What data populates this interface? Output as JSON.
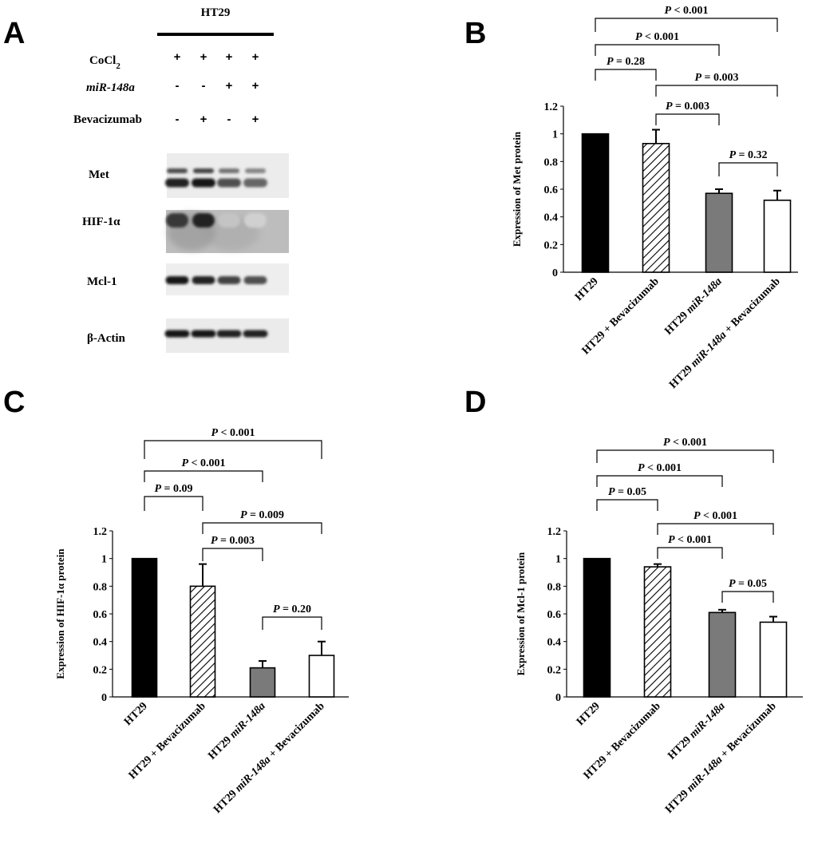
{
  "panels": {
    "a": "A",
    "b": "B",
    "c": "C",
    "d": "D"
  },
  "blot": {
    "cell_line": "HT29",
    "rows": [
      {
        "label": "CoCl",
        "subscript": "2",
        "italic": false,
        "signs": [
          "+",
          "+",
          "+",
          "+"
        ]
      },
      {
        "label": "miR-148a",
        "subscript": "",
        "italic": true,
        "signs": [
          "-",
          "-",
          "+",
          "+"
        ]
      },
      {
        "label": "Bevacizumab",
        "subscript": "",
        "italic": false,
        "signs": [
          "-",
          "+",
          "-",
          "+"
        ]
      }
    ],
    "proteins": [
      {
        "label": "Met",
        "intensity": [
          0.95,
          1.0,
          0.75,
          0.65
        ]
      },
      {
        "label": "HIF-1α",
        "intensity": [
          0.85,
          0.95,
          0.25,
          0.2
        ]
      },
      {
        "label": "Mcl-1",
        "intensity": [
          1.0,
          0.95,
          0.8,
          0.75
        ]
      },
      {
        "label": "β-Actin",
        "intensity": [
          1.0,
          1.0,
          0.95,
          0.95
        ]
      }
    ]
  },
  "chart_data": [
    {
      "panel": "B",
      "type": "bar",
      "categories": [
        [
          {
            "t": "HT29",
            "i": false
          }
        ],
        [
          {
            "t": "HT29 + Bevacizumab",
            "i": false
          }
        ],
        [
          {
            "t": "HT29 ",
            "i": false
          },
          {
            "t": "miR-148a",
            "i": true
          }
        ],
        [
          {
            "t": "HT29 ",
            "i": false
          },
          {
            "t": "miR-148a",
            "i": true
          },
          {
            "t": " + Bevacizumab",
            "i": false
          }
        ]
      ],
      "values": [
        1.0,
        0.93,
        0.57,
        0.52
      ],
      "errors": [
        0,
        0.1,
        0.03,
        0.07
      ],
      "ylabel": "Expression of Met protein",
      "ylim": [
        0,
        1.2
      ],
      "yticks": [
        "0",
        "0.2",
        "0.4",
        "0.6",
        "0.8",
        "1",
        "1.2"
      ],
      "fills": [
        "black",
        "hatch",
        "#7a7a7a",
        "#ffffff"
      ],
      "comparisons": [
        {
          "from": 0,
          "to": 3,
          "label": "< 0.001"
        },
        {
          "from": 0,
          "to": 2,
          "label": "< 0.001"
        },
        {
          "from": 0,
          "to": 1,
          "label": "= 0.28"
        },
        {
          "from": 1,
          "to": 3,
          "label": "= 0.003"
        },
        {
          "from": 1,
          "to": 2,
          "label": "= 0.003"
        },
        {
          "from": 2,
          "to": 3,
          "label": "= 0.32"
        }
      ]
    },
    {
      "panel": "C",
      "type": "bar",
      "categories": [
        [
          {
            "t": "HT29",
            "i": false
          }
        ],
        [
          {
            "t": "HT29 + Bevacizumab",
            "i": false
          }
        ],
        [
          {
            "t": "HT29 ",
            "i": false
          },
          {
            "t": "miR-148a",
            "i": true
          }
        ],
        [
          {
            "t": "HT29 ",
            "i": false
          },
          {
            "t": "miR-148a",
            "i": true
          },
          {
            "t": " + Bevacizumab",
            "i": false
          }
        ]
      ],
      "values": [
        1.0,
        0.8,
        0.21,
        0.3
      ],
      "errors": [
        0,
        0.16,
        0.05,
        0.1
      ],
      "ylabel": "Expression of HIF-1α protein",
      "ylim": [
        0,
        1.2
      ],
      "yticks": [
        "0",
        "0.2",
        "0.4",
        "0.6",
        "0.8",
        "1",
        "1.2"
      ],
      "fills": [
        "black",
        "hatch",
        "#7a7a7a",
        "#ffffff"
      ],
      "comparisons": [
        {
          "from": 0,
          "to": 3,
          "label": "< 0.001"
        },
        {
          "from": 0,
          "to": 2,
          "label": "< 0.001"
        },
        {
          "from": 0,
          "to": 1,
          "label": "= 0.09"
        },
        {
          "from": 1,
          "to": 3,
          "label": "= 0.009"
        },
        {
          "from": 1,
          "to": 2,
          "label": "= 0.003"
        },
        {
          "from": 2,
          "to": 3,
          "label": "= 0.20"
        }
      ]
    },
    {
      "panel": "D",
      "type": "bar",
      "categories": [
        [
          {
            "t": "HT29",
            "i": false
          }
        ],
        [
          {
            "t": "HT29 + Bevacizumab",
            "i": false
          }
        ],
        [
          {
            "t": "HT29 ",
            "i": false
          },
          {
            "t": "miR-148a",
            "i": true
          }
        ],
        [
          {
            "t": "HT29 ",
            "i": false
          },
          {
            "t": "miR-148a",
            "i": true
          },
          {
            "t": " + Bevacizumab",
            "i": false
          }
        ]
      ],
      "values": [
        1.0,
        0.94,
        0.61,
        0.54
      ],
      "errors": [
        0,
        0.02,
        0.02,
        0.04
      ],
      "ylabel": "Expression of Mcl-1 protein",
      "ylim": [
        0,
        1.2
      ],
      "yticks": [
        "0",
        "0.2",
        "0.4",
        "0.6",
        "0.8",
        "1",
        "1.2"
      ],
      "fills": [
        "black",
        "hatch",
        "#7a7a7a",
        "#ffffff"
      ],
      "comparisons": [
        {
          "from": 0,
          "to": 3,
          "label": "< 0.001"
        },
        {
          "from": 0,
          "to": 2,
          "label": "< 0.001"
        },
        {
          "from": 0,
          "to": 1,
          "label": "= 0.05"
        },
        {
          "from": 1,
          "to": 3,
          "label": "< 0.001"
        },
        {
          "from": 1,
          "to": 2,
          "label": "< 0.001"
        },
        {
          "from": 2,
          "to": 3,
          "label": "= 0.05"
        }
      ]
    }
  ]
}
